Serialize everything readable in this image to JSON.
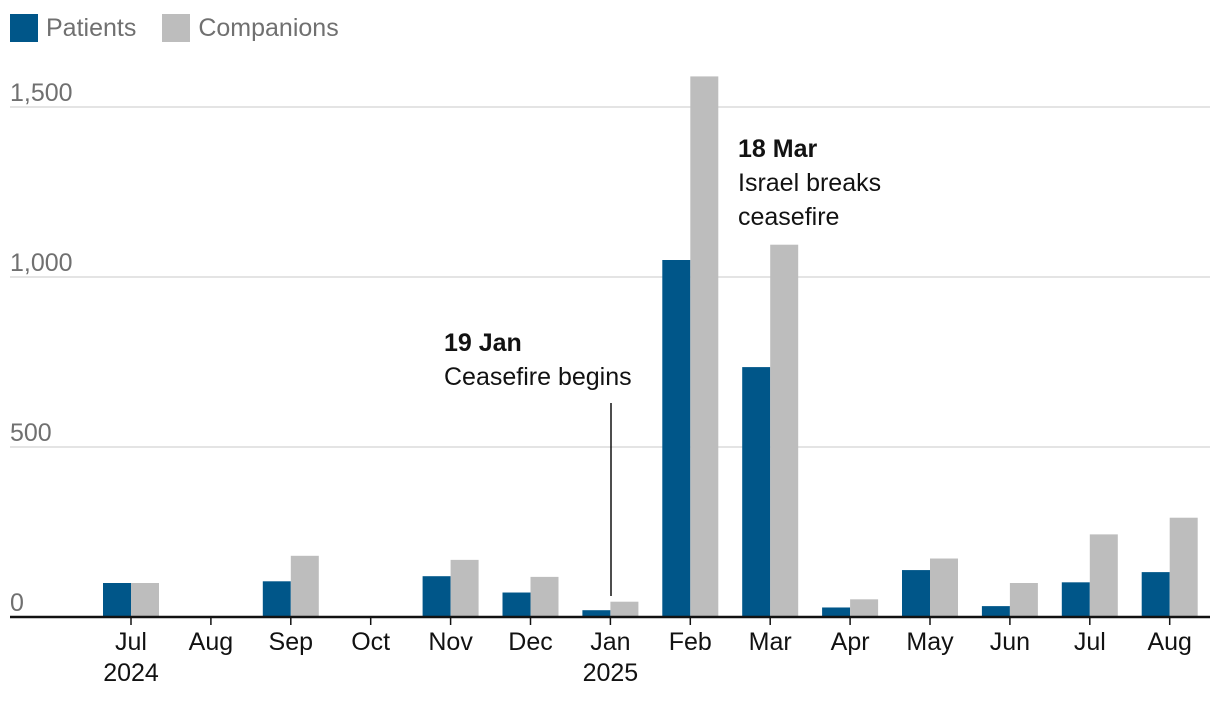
{
  "legend": {
    "patients_label": "Patients",
    "companions_label": "Companions"
  },
  "colors": {
    "patients": "#005689",
    "companions": "#bdbdbd",
    "grid": "#c8c8c8",
    "axis": "#121212",
    "tick_text": "#707070",
    "label_text": "#121212"
  },
  "chart_data": {
    "type": "bar",
    "categories": [
      "Jul",
      "Aug",
      "Sep",
      "Oct",
      "Nov",
      "Dec",
      "Jan",
      "Feb",
      "Mar",
      "Apr",
      "May",
      "Jun",
      "Jul",
      "Aug"
    ],
    "year_labels": [
      "2024",
      "",
      "",
      "",
      "",
      "",
      "2025",
      "",
      "",
      "",
      "",
      "",
      "",
      ""
    ],
    "series": [
      {
        "name": "Patients",
        "values": [
          100,
          0,
          105,
          0,
          120,
          72,
          20,
          1050,
          735,
          28,
          138,
          32,
          102,
          132
        ]
      },
      {
        "name": "Companions",
        "values": [
          100,
          0,
          180,
          0,
          168,
          118,
          45,
          1590,
          1095,
          52,
          172,
          100,
          243,
          292
        ]
      }
    ],
    "y_ticks": [
      {
        "value": 0,
        "label": "0"
      },
      {
        "value": 500,
        "label": "500"
      },
      {
        "value": 1000,
        "label": "1,000"
      },
      {
        "value": 1500,
        "label": "1,500"
      }
    ],
    "ylim": [
      0,
      1600
    ],
    "grid": true,
    "legend_position": "top-left",
    "annotations": [
      {
        "category_index": 6,
        "bold": "19 Jan",
        "text": [
          "Ceasefire begins"
        ],
        "leader_line": true
      },
      {
        "category_index": 8,
        "bold": "18 Mar",
        "text": [
          "Israel breaks",
          "ceasefire"
        ],
        "leader_line": false
      }
    ]
  }
}
